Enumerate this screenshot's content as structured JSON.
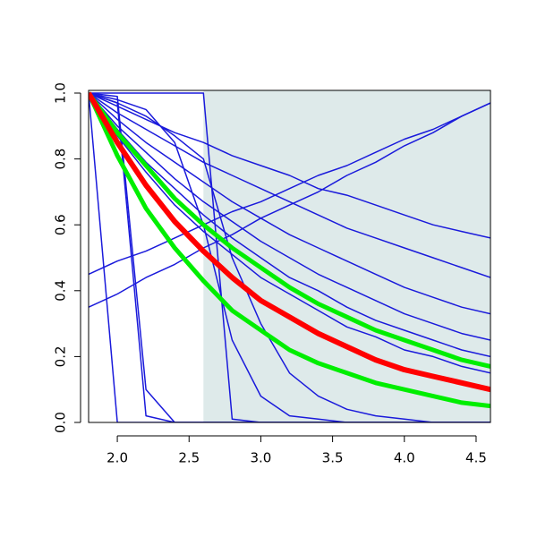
{
  "chart_data": {
    "type": "line",
    "x": [
      1.8,
      2.0,
      2.2,
      2.4,
      2.6,
      2.8,
      3.0,
      3.2,
      3.4,
      3.6,
      3.8,
      4.0,
      4.2,
      4.4,
      4.6
    ],
    "xlim": [
      1.8,
      4.6
    ],
    "ylim": [
      0,
      1
    ],
    "xticks": [
      {
        "value": 2,
        "label": "2.0"
      },
      2.5,
      {
        "value": 3,
        "label": "3.0"
      },
      3.5,
      {
        "value": 4,
        "label": "4.0"
      },
      4.5
    ],
    "yticks": [
      {
        "value": 0,
        "label": "0.0"
      },
      0.2,
      0.4,
      0.6,
      0.8,
      {
        "value": 1,
        "label": "1.0"
      }
    ],
    "shaded_xrange": [
      2.6,
      4.6
    ],
    "shade_color": "#deeaea",
    "series": [
      {
        "color": "#1a1adb",
        "line_width": 1.5,
        "values": [
          1,
          0.96,
          0.92,
          0.88,
          0.85,
          0.81,
          0.78,
          0.75,
          0.71,
          0.69,
          0.66,
          0.63,
          0.6,
          0.58,
          0.56
        ]
      },
      {
        "color": "#1a1adb",
        "line_width": 1.5,
        "values": [
          1,
          0.94,
          0.89,
          0.84,
          0.79,
          0.75,
          0.71,
          0.67,
          0.63,
          0.59,
          0.56,
          0.53,
          0.5,
          0.47,
          0.44
        ]
      },
      {
        "color": "#1a1adb",
        "line_width": 1.5,
        "values": [
          1,
          0.92,
          0.85,
          0.79,
          0.73,
          0.67,
          0.62,
          0.57,
          0.53,
          0.49,
          0.45,
          0.41,
          0.38,
          0.35,
          0.33
        ]
      },
      {
        "color": "#1a1adb",
        "line_width": 1.5,
        "values": [
          1,
          0.9,
          0.82,
          0.74,
          0.67,
          0.61,
          0.55,
          0.5,
          0.45,
          0.41,
          0.37,
          0.33,
          0.3,
          0.27,
          0.25
        ]
      },
      {
        "color": "#1a1adb",
        "line_width": 1.5,
        "values": [
          1,
          0.89,
          0.79,
          0.71,
          0.63,
          0.56,
          0.5,
          0.44,
          0.4,
          0.35,
          0.31,
          0.28,
          0.25,
          0.22,
          0.2
        ]
      },
      {
        "color": "#1a1adb",
        "line_width": 1.5,
        "values": [
          1,
          0.87,
          0.76,
          0.66,
          0.58,
          0.51,
          0.44,
          0.39,
          0.34,
          0.29,
          0.26,
          0.22,
          0.2,
          0.17,
          0.15
        ]
      },
      {
        "color": "#1a1adb",
        "line_width": 1.5,
        "values": [
          0.45,
          0.49,
          0.52,
          0.56,
          0.6,
          0.64,
          0.67,
          0.71,
          0.75,
          0.78,
          0.82,
          0.86,
          0.89,
          0.93,
          0.97
        ]
      },
      {
        "color": "#1a1adb",
        "line_width": 1.5,
        "values": [
          0.35,
          0.39,
          0.44,
          0.48,
          0.53,
          0.57,
          0.62,
          0.66,
          0.7,
          0.75,
          0.79,
          0.84,
          0.88,
          0.93,
          0.97
        ]
      },
      {
        "color": "#1a1adb",
        "line_width": 1.5,
        "values": [
          1,
          0,
          0,
          0,
          0,
          0,
          0,
          0,
          0,
          0,
          0,
          0,
          0,
          0,
          0
        ]
      },
      {
        "color": "#1a1adb",
        "line_width": 1.5,
        "values": [
          1,
          0.97,
          0.02,
          0,
          0,
          0,
          0,
          0,
          0,
          0,
          0,
          0,
          0,
          0,
          0
        ]
      },
      {
        "color": "#1a1adb",
        "line_width": 1.5,
        "values": [
          1,
          0.99,
          0.1,
          0,
          0,
          0,
          0,
          0,
          0,
          0,
          0,
          0,
          0,
          0,
          0
        ]
      },
      {
        "color": "#1a1adb",
        "line_width": 1.5,
        "values": [
          1,
          1,
          1,
          1,
          1,
          0.01,
          0,
          0,
          0,
          0,
          0,
          0,
          0,
          0,
          0
        ]
      },
      {
        "color": "#1a1adb",
        "line_width": 1.5,
        "values": [
          1,
          0.98,
          0.95,
          0.85,
          0.6,
          0.25,
          0.08,
          0.02,
          0.01,
          0,
          0,
          0,
          0,
          0,
          0
        ]
      },
      {
        "color": "#1a1adb",
        "line_width": 1.5,
        "values": [
          1,
          0.97,
          0.93,
          0.87,
          0.8,
          0.5,
          0.3,
          0.15,
          0.08,
          0.04,
          0.02,
          0.01,
          0,
          0,
          0
        ]
      },
      {
        "color": "#00ee00",
        "line_width": 5,
        "values": [
          1,
          0.88,
          0.78,
          0.68,
          0.6,
          0.53,
          0.47,
          0.41,
          0.36,
          0.32,
          0.28,
          0.25,
          0.22,
          0.19,
          0.17
        ]
      },
      {
        "color": "#00ee00",
        "line_width": 5,
        "values": [
          1,
          0.81,
          0.65,
          0.53,
          0.43,
          0.34,
          0.28,
          0.22,
          0.18,
          0.15,
          0.12,
          0.1,
          0.08,
          0.06,
          0.05
        ]
      },
      {
        "color": "#ff0000",
        "line_width": 6,
        "values": [
          1,
          0.85,
          0.72,
          0.61,
          0.52,
          0.44,
          0.37,
          0.32,
          0.27,
          0.23,
          0.19,
          0.16,
          0.14,
          0.12,
          0.1
        ]
      }
    ]
  }
}
